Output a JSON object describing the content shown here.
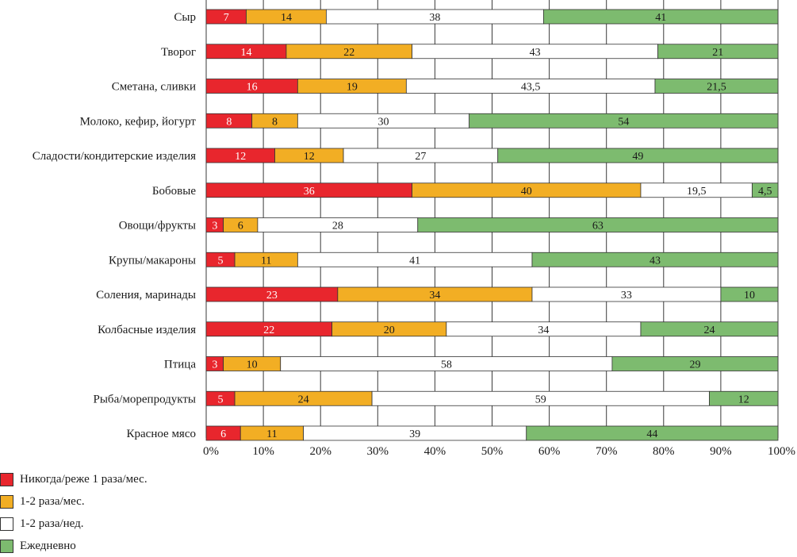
{
  "chart_data": {
    "type": "bar",
    "orientation": "horizontal",
    "stacked": true,
    "categories": [
      "Сыр",
      "Творог",
      "Сметана, сливки",
      "Молоко, кефир, йогурт",
      "Сладости/кондитерские изделия",
      "Бобовые",
      "Овощи/фрукты",
      "Крупы/макароны",
      "Соления, маринады",
      "Колбасные изделия",
      "Птица",
      "Рыба/морепродукты",
      "Красное мясо"
    ],
    "series": [
      {
        "name": "Никогда/реже 1 раза/мес.",
        "color": "#e8262d",
        "label_color": "#ffffff",
        "values": [
          7,
          14,
          16,
          8,
          12,
          36,
          3,
          5,
          23,
          22,
          3,
          5,
          6
        ],
        "labels": [
          "7",
          "14",
          "16",
          "8",
          "12",
          "36",
          "3",
          "5",
          "23",
          "22",
          "3",
          "5",
          "6"
        ]
      },
      {
        "name": "1-2 раза/мес.",
        "color": "#f2ae24",
        "label_color": "#1a1a1a",
        "values": [
          14,
          22,
          19,
          8,
          12,
          40,
          6,
          11,
          34,
          20,
          10,
          24,
          11
        ],
        "labels": [
          "14",
          "22",
          "19",
          "8",
          "12",
          "40",
          "6",
          "11",
          "34",
          "20",
          "10",
          "24",
          "11"
        ]
      },
      {
        "name": "1-2 раза/нед.",
        "color": "#ffffff",
        "label_color": "#1a1a1a",
        "values": [
          38,
          43,
          43.5,
          30,
          27,
          19.5,
          28,
          41,
          33,
          34,
          58,
          59,
          39
        ],
        "labels": [
          "38",
          "43",
          "43,5",
          "30",
          "27",
          "19,5",
          "28",
          "41",
          "33",
          "34",
          "58",
          "59",
          "39"
        ]
      },
      {
        "name": "Ежедневно",
        "color": "#7dbb6f",
        "label_color": "#1a1a1a",
        "values": [
          41,
          21,
          21.5,
          54,
          49,
          4.5,
          63,
          43,
          10,
          24,
          29,
          12,
          44
        ],
        "labels": [
          "41",
          "21",
          "21,5",
          "54",
          "49",
          "4,5",
          "63",
          "43",
          "10",
          "24",
          "29",
          "12",
          "44"
        ]
      }
    ],
    "x_ticks": [
      "0%",
      "10%",
      "20%",
      "30%",
      "40%",
      "50%",
      "60%",
      "70%",
      "80%",
      "90%",
      "100%"
    ],
    "xlim": [
      0,
      100
    ],
    "grid": "vertical",
    "legend_position": "bottom-left"
  }
}
